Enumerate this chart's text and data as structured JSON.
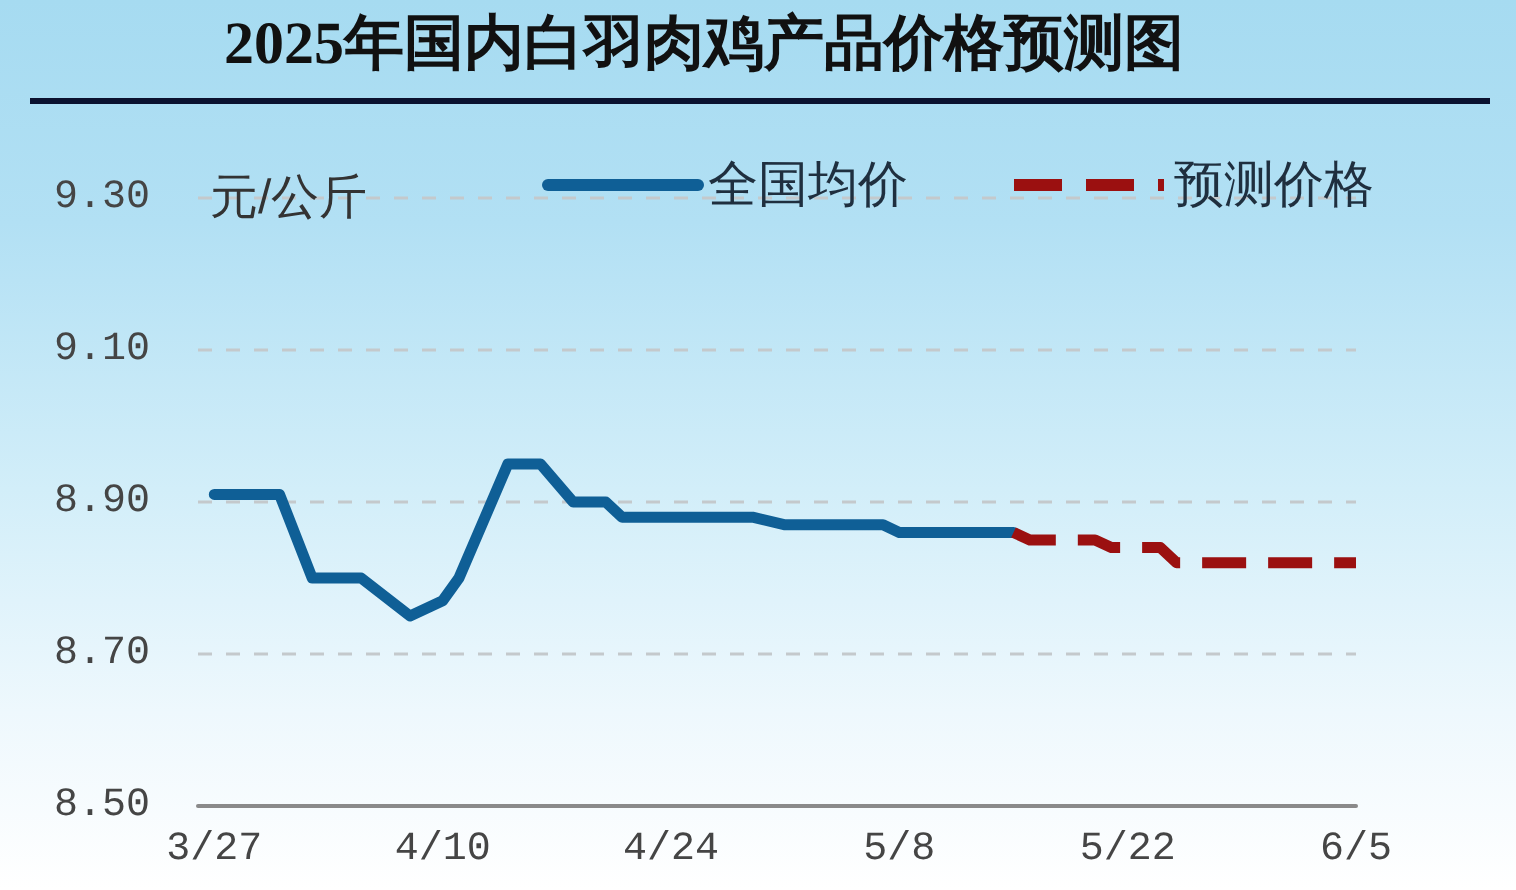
{
  "chart_data": {
    "type": "line",
    "title": "2025年国内白羽肉鸡产品价格预测图",
    "ylabel": "元/公斤",
    "series": [
      {
        "name": "全国均价",
        "color": "#0f5f96",
        "line_style": "solid",
        "x": [
          "--03-27",
          "--03-31",
          "--04-02",
          "--04-05",
          "--04-08",
          "--04-10",
          "--04-11",
          "--04-14",
          "--04-16",
          "--04-18",
          "--04-20",
          "--04-21",
          "--04-29",
          "--05-01",
          "--05-07",
          "--05-08",
          "--05-15"
        ],
        "values": [
          8.91,
          8.91,
          8.8,
          8.8,
          8.75,
          8.77,
          8.8,
          8.95,
          8.95,
          8.9,
          8.9,
          8.88,
          8.88,
          8.87,
          8.87,
          8.86,
          8.86
        ]
      },
      {
        "name": "预测价格",
        "color": "#9b1010",
        "line_style": "dashed",
        "x": [
          "--05-15",
          "--05-16",
          "--05-20",
          "--05-21",
          "--05-24",
          "--05-25",
          "--06-05"
        ],
        "values": [
          8.86,
          8.85,
          8.85,
          8.84,
          8.84,
          8.82,
          8.82
        ]
      }
    ],
    "xlim": [
      "--03-26",
      "--06-05"
    ],
    "xticks": [
      {
        "value": "--03-27",
        "label": "3/27"
      },
      {
        "value": "--04-10",
        "label": "4/10"
      },
      {
        "value": "--04-24",
        "label": "4/24"
      },
      {
        "value": "--05-08",
        "label": "5/8"
      },
      {
        "value": "--05-22",
        "label": "5/22"
      },
      {
        "value": "--06-05",
        "label": "6/5"
      }
    ],
    "ylim": [
      8.5,
      9.3
    ],
    "yticks": [
      {
        "value": 8.5,
        "label": "8.50"
      },
      {
        "value": 8.7,
        "label": "8.70"
      },
      {
        "value": 8.9,
        "label": "8.90"
      },
      {
        "value": 9.1,
        "label": "9.10"
      },
      {
        "value": 9.3,
        "label": "9.30"
      }
    ],
    "grid": "y",
    "legend": "top right",
    "marker": "none"
  }
}
